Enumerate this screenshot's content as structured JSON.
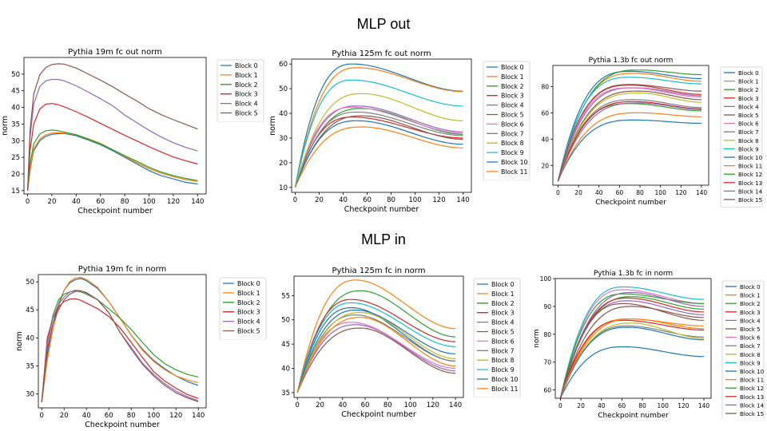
{
  "section_titles": {
    "top": "MLP out",
    "bottom": "MLP in"
  },
  "chart_data": [
    {
      "type": "line",
      "title": "Pythia 19m fc out norm",
      "xlabel": "Checkpoint number",
      "ylabel": "norm",
      "xlim": [
        -3,
        147
      ],
      "ylim": [
        14,
        55
      ],
      "xticks": [
        0,
        20,
        40,
        60,
        80,
        100,
        120,
        140
      ],
      "yticks": [
        15,
        20,
        25,
        30,
        35,
        40,
        45,
        50
      ],
      "legend": "right-outside",
      "series": [
        {
          "name": "Block 0",
          "color": "#1f77b4",
          "x": [
            0,
            2,
            5,
            10,
            15,
            20,
            25,
            30,
            40,
            50,
            60,
            70,
            80,
            90,
            100,
            110,
            120,
            130,
            140
          ],
          "y": [
            15,
            21,
            27,
            30,
            31.3,
            31.9,
            32.1,
            32.2,
            31.5,
            30.2,
            28.8,
            27,
            25,
            23,
            21,
            19.5,
            18.5,
            17.5,
            17
          ]
        },
        {
          "name": "Block 1",
          "color": "#ff7f0e",
          "x": [
            0,
            2,
            5,
            10,
            15,
            20,
            25,
            30,
            40,
            50,
            60,
            70,
            80,
            90,
            100,
            110,
            120,
            130,
            140
          ],
          "y": [
            15,
            21,
            27.5,
            30.5,
            31.8,
            32.3,
            32.4,
            32.3,
            31.8,
            30.6,
            29.2,
            27.3,
            25.3,
            23.4,
            21.6,
            20.2,
            19.2,
            18.3,
            17.8
          ]
        },
        {
          "name": "Block 2",
          "color": "#2ca02c",
          "x": [
            0,
            2,
            5,
            10,
            15,
            20,
            25,
            30,
            40,
            50,
            60,
            70,
            80,
            90,
            100,
            110,
            120,
            130,
            140
          ],
          "y": [
            15,
            23,
            29,
            32,
            33,
            33.2,
            33,
            32.6,
            31.8,
            30.4,
            29,
            27.3,
            25.5,
            23.8,
            22,
            20.6,
            19.5,
            18.7,
            18
          ]
        },
        {
          "name": "Block 3",
          "color": "#d62728",
          "x": [
            0,
            2,
            5,
            10,
            15,
            20,
            25,
            30,
            40,
            50,
            60,
            70,
            80,
            90,
            100,
            110,
            120,
            130,
            140
          ],
          "y": [
            15,
            27,
            35,
            39.5,
            41,
            41.2,
            40.8,
            40.2,
            38.7,
            37,
            35.2,
            33.4,
            31.6,
            29.9,
            28.2,
            26.6,
            25.1,
            24,
            23
          ]
        },
        {
          "name": "Block 4",
          "color": "#9467bd",
          "x": [
            0,
            2,
            5,
            10,
            15,
            20,
            25,
            30,
            40,
            50,
            60,
            70,
            80,
            90,
            100,
            110,
            120,
            130,
            140
          ],
          "y": [
            15,
            31,
            41,
            46.3,
            48,
            48.4,
            48.4,
            48,
            46.5,
            44.6,
            42.6,
            40.5,
            37.7,
            35.4,
            33.1,
            31.1,
            29.4,
            28,
            26.9
          ]
        },
        {
          "name": "Block 5",
          "color": "#8c564b",
          "x": [
            0,
            2,
            5,
            10,
            15,
            20,
            25,
            30,
            40,
            50,
            60,
            70,
            80,
            90,
            100,
            110,
            120,
            130,
            140
          ],
          "y": [
            15,
            33,
            44,
            49.8,
            52,
            52.9,
            53.1,
            53,
            51.8,
            50,
            48.2,
            46.2,
            44,
            41.9,
            39.6,
            37.8,
            36.3,
            34.9,
            33.5
          ]
        }
      ]
    },
    {
      "type": "line",
      "title": "Pythia 125m fc out norm",
      "xlabel": "Checkpoint number",
      "ylabel": "norm",
      "xlim": [
        -3,
        147
      ],
      "ylim": [
        8,
        62
      ],
      "xticks": [
        0,
        20,
        40,
        60,
        80,
        100,
        120,
        140
      ],
      "yticks": [
        10,
        20,
        30,
        40,
        50,
        60
      ],
      "legend": "right-outside",
      "series": [
        {
          "name": "Block 0",
          "color": "#1f77b4",
          "peak": 60,
          "end": 49
        },
        {
          "name": "Block 1",
          "color": "#ff7f0e",
          "peak": 58.5,
          "end": 48.8
        },
        {
          "name": "Block 2",
          "color": "#2ca02c",
          "peak": 42,
          "end": 31.5
        },
        {
          "name": "Block 3",
          "color": "#d62728",
          "peak": 38.5,
          "end": 30
        },
        {
          "name": "Block 4",
          "color": "#9467bd",
          "peak": 43,
          "end": 32.5
        },
        {
          "name": "Block 5",
          "color": "#8c564b",
          "peak": 39,
          "end": 29.5
        },
        {
          "name": "Block 6",
          "color": "#e377c2",
          "peak": 42.5,
          "end": 32
        },
        {
          "name": "Block 7",
          "color": "#7f7f7f",
          "peak": 40.5,
          "end": 31
        },
        {
          "name": "Block 8",
          "color": "#bcbd22",
          "peak": 48,
          "end": 37
        },
        {
          "name": "Block 9",
          "color": "#17becf",
          "peak": 53.5,
          "end": 43
        },
        {
          "name": "Block 10",
          "color": "#1f77b4",
          "peak": 37,
          "end": 27.5
        },
        {
          "name": "Block 11",
          "color": "#ff7f0e",
          "peak": 34.5,
          "end": 26
        }
      ]
    },
    {
      "type": "line",
      "title": "Pythia 1.3b fc out norm",
      "xlabel": "Checkpoint number",
      "xlim": [
        -5,
        147
      ],
      "ylim": [
        5,
        96
      ],
      "xticks": [
        0,
        20,
        40,
        60,
        80,
        100,
        120,
        140
      ],
      "yticks": [
        20,
        40,
        60,
        80
      ],
      "legend": "right-outside",
      "series": [
        {
          "name": "Block 0",
          "color": "#1f77b4",
          "peak": 91.5,
          "end": 86
        },
        {
          "name": "Block 1",
          "color": "#ff7f0e",
          "peak": 90,
          "end": 84
        },
        {
          "name": "Block 2",
          "color": "#2ca02c",
          "peak": 92.5,
          "end": 89
        },
        {
          "name": "Block 3",
          "color": "#d62728",
          "peak": 81,
          "end": 74
        },
        {
          "name": "Block 4",
          "color": "#9467bd",
          "peak": 79,
          "end": 73
        },
        {
          "name": "Block 5",
          "color": "#8c564b",
          "peak": 76.5,
          "end": 70
        },
        {
          "name": "Block 6",
          "color": "#e377c2",
          "peak": 79,
          "end": 72
        },
        {
          "name": "Block 7",
          "color": "#7f7f7f",
          "peak": 70,
          "end": 64
        },
        {
          "name": "Block 8",
          "color": "#bcbd22",
          "peak": 75,
          "end": 68
        },
        {
          "name": "Block 9",
          "color": "#17becf",
          "peak": 87,
          "end": 82
        },
        {
          "name": "Block 10",
          "color": "#1f77b4",
          "peak": 54.5,
          "end": 52
        },
        {
          "name": "Block 11",
          "color": "#ff7f0e",
          "peak": 60,
          "end": 57
        },
        {
          "name": "Block 12",
          "color": "#2ca02c",
          "peak": 67,
          "end": 61.5
        },
        {
          "name": "Block 13",
          "color": "#d62728",
          "peak": 68.5,
          "end": 63
        },
        {
          "name": "Block 14",
          "color": "#9467bd",
          "peak": 67.5,
          "end": 62.5
        },
        {
          "name": "Block 15",
          "color": "#8c564b",
          "peak": 81.5,
          "end": 76.5
        }
      ]
    },
    {
      "type": "line",
      "title": "Pythia 19m fc in norm",
      "xlabel": "Checkpoint number",
      "ylabel": "norm",
      "xlim": [
        -3,
        147
      ],
      "ylim": [
        27.5,
        51.3
      ],
      "xticks": [
        0,
        20,
        40,
        60,
        80,
        100,
        120,
        140
      ],
      "yticks": [
        30,
        35,
        40,
        45,
        50
      ],
      "legend": "right-outside",
      "series": [
        {
          "name": "Block 0",
          "color": "#1f77b4",
          "x": [
            0,
            5,
            10,
            15,
            20,
            25,
            30,
            35,
            40,
            50,
            60,
            70,
            80,
            90,
            100,
            110,
            120,
            130,
            140
          ],
          "y": [
            28.5,
            37,
            42.5,
            46,
            48.5,
            49.8,
            50.4,
            50.6,
            50.2,
            48.8,
            46.5,
            43.5,
            40.5,
            38,
            36,
            34.5,
            33.2,
            32.2,
            31.5
          ]
        },
        {
          "name": "Block 1",
          "color": "#ff7f0e",
          "x": [
            0,
            5,
            10,
            15,
            20,
            25,
            30,
            35,
            40,
            50,
            60,
            70,
            80,
            90,
            100,
            110,
            120,
            130,
            140
          ],
          "y": [
            28.5,
            36,
            41.5,
            45.5,
            48.5,
            50,
            50.7,
            50.8,
            50.4,
            49,
            46.5,
            43.5,
            40.5,
            37.8,
            35.8,
            34.3,
            33.2,
            32.5,
            32
          ]
        },
        {
          "name": "Block 2",
          "color": "#2ca02c",
          "x": [
            0,
            5,
            10,
            15,
            20,
            25,
            30,
            35,
            40,
            50,
            60,
            70,
            80,
            90,
            100,
            110,
            120,
            130,
            140
          ],
          "y": [
            28.5,
            39,
            44,
            46.8,
            47.8,
            48.2,
            48.4,
            48.2,
            47.8,
            46.8,
            45.2,
            43.5,
            41.5,
            39.2,
            37,
            35.4,
            34.3,
            33.5,
            33
          ]
        },
        {
          "name": "Block 3",
          "color": "#d62728",
          "x": [
            0,
            5,
            10,
            15,
            20,
            25,
            30,
            35,
            40,
            50,
            60,
            70,
            80,
            90,
            100,
            110,
            120,
            130,
            140
          ],
          "y": [
            28.5,
            40,
            43.5,
            45.5,
            46.5,
            46.9,
            47,
            46.7,
            46.2,
            45.2,
            43.8,
            41.8,
            39.2,
            36.5,
            34,
            32.3,
            31,
            29.9,
            29.2
          ]
        },
        {
          "name": "Block 4",
          "color": "#9467bd",
          "x": [
            0,
            5,
            10,
            15,
            20,
            25,
            30,
            35,
            40,
            50,
            60,
            70,
            80,
            90,
            100,
            110,
            120,
            130,
            140
          ],
          "y": [
            28.5,
            39,
            43.5,
            46,
            47.3,
            48.2,
            48.5,
            48.4,
            48,
            46.8,
            44.5,
            41,
            38.3,
            35.5,
            33.5,
            31.8,
            30.5,
            29.5,
            28.8
          ]
        },
        {
          "name": "Block 5",
          "color": "#8c564b",
          "x": [
            0,
            5,
            10,
            15,
            20,
            25,
            30,
            35,
            40,
            50,
            60,
            70,
            80,
            90,
            100,
            110,
            120,
            130,
            140
          ],
          "y": [
            28.5,
            38,
            42.5,
            45,
            46.8,
            47.8,
            48.3,
            48.4,
            48.1,
            46.8,
            44.5,
            41,
            38,
            35.3,
            33.2,
            31.5,
            30.2,
            29.3,
            28.6
          ]
        }
      ]
    },
    {
      "type": "line",
      "title": "Pythia 125m fc in norm",
      "xlabel": "Checkpoint number",
      "xlim": [
        -3,
        147
      ],
      "ylim": [
        34,
        59
      ],
      "xticks": [
        0,
        20,
        40,
        60,
        80,
        100,
        120,
        140
      ],
      "yticks": [
        35,
        40,
        45,
        50,
        55
      ],
      "legend": "right-outside",
      "series": [
        {
          "name": "Block 0",
          "color": "#1f77b4",
          "peak": 52.5,
          "end": 41.5
        },
        {
          "name": "Block 1",
          "color": "#ff7f0e",
          "peak": 58.2,
          "end": 48.2
        },
        {
          "name": "Block 2",
          "color": "#2ca02c",
          "peak": 56,
          "end": 46.5
        },
        {
          "name": "Block 3",
          "color": "#d62728",
          "peak": 54.2,
          "end": 45.5
        },
        {
          "name": "Block 4",
          "color": "#9467bd",
          "peak": 49,
          "end": 39.5
        },
        {
          "name": "Block 5",
          "color": "#8c564b",
          "peak": 48.3,
          "end": 39
        },
        {
          "name": "Block 6",
          "color": "#e377c2",
          "peak": 49.5,
          "end": 40
        },
        {
          "name": "Block 7",
          "color": "#7f7f7f",
          "peak": 51,
          "end": 41.5
        },
        {
          "name": "Block 8",
          "color": "#bcbd22",
          "peak": 51.5,
          "end": 42
        },
        {
          "name": "Block 9",
          "color": "#17becf",
          "peak": 53.5,
          "end": 44.5
        },
        {
          "name": "Block 10",
          "color": "#1f77b4",
          "peak": 52,
          "end": 43
        },
        {
          "name": "Block 11",
          "color": "#ff7f0e",
          "peak": 50.5,
          "end": 40.5
        }
      ]
    },
    {
      "type": "line",
      "title": "Pythia 1.3b fc in norm",
      "xlabel": "Checkpoint number",
      "ylabel": "norm",
      "xlim": [
        -5,
        147
      ],
      "ylim": [
        57,
        100
      ],
      "xticks": [
        0,
        20,
        40,
        60,
        80,
        100,
        120,
        140
      ],
      "yticks": [
        60,
        70,
        80,
        90,
        100
      ],
      "legend": "right-outside",
      "series": [
        {
          "name": "Block 0",
          "color": "#1f77b4",
          "peak": 75.5,
          "end": 72
        },
        {
          "name": "Block 1",
          "color": "#ff7f0e",
          "peak": 85.5,
          "end": 83
        },
        {
          "name": "Block 2",
          "color": "#2ca02c",
          "peak": 93.5,
          "end": 89
        },
        {
          "name": "Block 3",
          "color": "#d62728",
          "peak": 85,
          "end": 81.5
        },
        {
          "name": "Block 4",
          "color": "#9467bd",
          "peak": 92,
          "end": 87
        },
        {
          "name": "Block 5",
          "color": "#8c564b",
          "peak": 90,
          "end": 86
        },
        {
          "name": "Block 6",
          "color": "#e377c2",
          "peak": 96,
          "end": 91
        },
        {
          "name": "Block 7",
          "color": "#7f7f7f",
          "peak": 83,
          "end": 79
        },
        {
          "name": "Block 8",
          "color": "#bcbd22",
          "peak": 84,
          "end": 78.5
        },
        {
          "name": "Block 9",
          "color": "#17becf",
          "peak": 97,
          "end": 92.5
        },
        {
          "name": "Block 10",
          "color": "#1f77b4",
          "peak": 82.5,
          "end": 78
        },
        {
          "name": "Block 11",
          "color": "#ff7f0e",
          "peak": 85.5,
          "end": 82
        },
        {
          "name": "Block 12",
          "color": "#2ca02c",
          "peak": 94.5,
          "end": 91
        },
        {
          "name": "Block 13",
          "color": "#d62728",
          "peak": 93,
          "end": 88
        },
        {
          "name": "Block 14",
          "color": "#9467bd",
          "peak": 95,
          "end": 90
        },
        {
          "name": "Block 15",
          "color": "#8c564b",
          "peak": 91,
          "end": 85
        }
      ]
    }
  ]
}
